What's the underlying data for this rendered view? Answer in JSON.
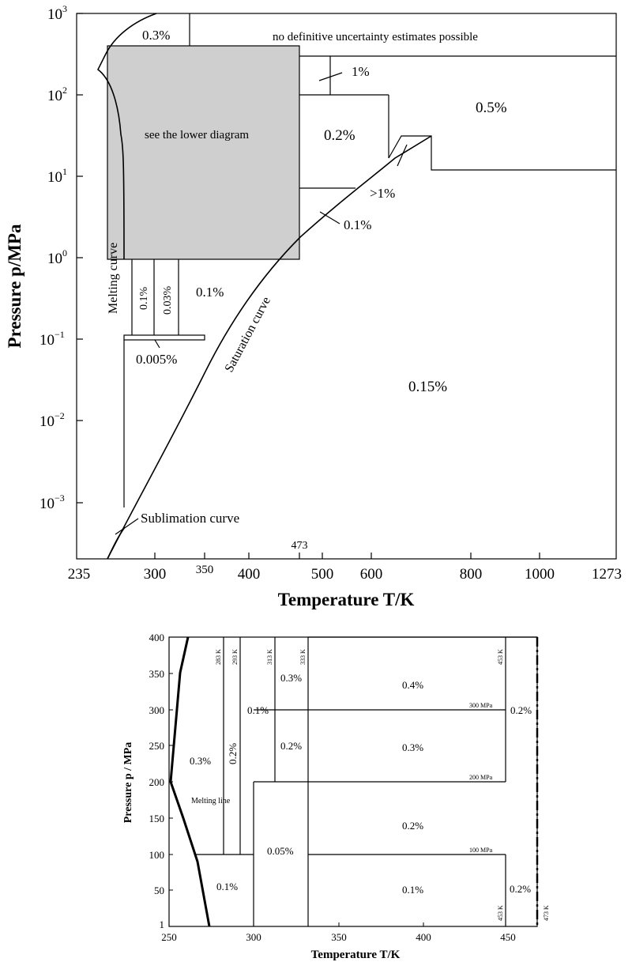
{
  "upper": {
    "x_axis_label": "Temperature T/K",
    "y_axis_label": "Pressure p/MPa",
    "x_ticks": [
      "235",
      "300",
      "350",
      "400",
      "473",
      "500",
      "600",
      "800",
      "1000",
      "1273"
    ],
    "y_ticks": [
      "10",
      "10",
      "10",
      "10",
      "10",
      "10",
      "10"
    ],
    "y_exponents": [
      "3",
      "2",
      "1",
      "0",
      "−1",
      "−2",
      "−3"
    ],
    "labels": {
      "melting": "0.3%",
      "no_estimate": "no definitive uncertainty estimates possible",
      "one_pct": "1%",
      "half_pct": "0.5%",
      "see_lower": "see the lower diagram",
      "two_tenth": "0.2%",
      "gt_one": ">1%",
      "one_tenth_a": "0.1%",
      "one_tenth_b": "0.1%",
      "one_tenth_v": "0.1%",
      "three_hundredths": "0.03%",
      "five_thousandths": "0.005%",
      "fifteen_hundredths": "0.15%",
      "melting_curve": "Melting curve",
      "saturation_curve": "Saturation curve",
      "sublimation_curve": "Sublimation curve"
    }
  },
  "lower": {
    "x_axis_label": "Temperature T/K",
    "y_axis_label": "Pressure p / MPa",
    "x_ticks": [
      "250",
      "300",
      "350",
      "400",
      "450"
    ],
    "y_ticks": [
      "400",
      "350",
      "300",
      "250",
      "200",
      "150",
      "100",
      "50",
      "1"
    ],
    "labels": {
      "r_03a": "0.3%",
      "r_02v": "0.2%",
      "r_01a": "0.1%",
      "r_03b": "0.3%",
      "r_04": "0.4%",
      "r_02a": "0.2%",
      "r_03c": "0.3%",
      "r_02right": "0.2%",
      "r_02b": "0.2%",
      "r_005": "0.05%",
      "r_01b": "0.1%",
      "r_01c": "0.1%",
      "r_02right_low": "0.2%",
      "melting_line": "Melting line",
      "t283": "283 K",
      "t293": "293 K",
      "t313": "313 K",
      "t333": "333 K",
      "t453a": "453 K",
      "t453b": "453 K",
      "t473": "473 K",
      "p300": "300 MPa",
      "p200": "200 MPa",
      "p100": "100 MPa"
    }
  }
}
